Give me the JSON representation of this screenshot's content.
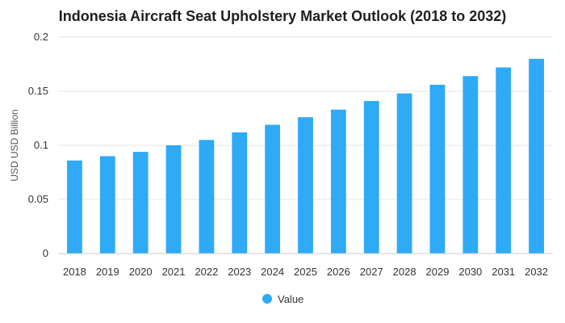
{
  "chart_data": {
    "type": "bar",
    "title": "Indonesia Aircraft Seat Upholstery Market Outlook (2018 to 2032)",
    "xlabel": "",
    "ylabel": "USD USD Billion",
    "categories": [
      "2018",
      "2019",
      "2020",
      "2021",
      "2022",
      "2023",
      "2024",
      "2025",
      "2026",
      "2027",
      "2028",
      "2029",
      "2030",
      "2031",
      "2032"
    ],
    "series": [
      {
        "name": "Value",
        "color": "#2eaaf7",
        "values": [
          0.086,
          0.09,
          0.094,
          0.1,
          0.105,
          0.112,
          0.119,
          0.126,
          0.133,
          0.141,
          0.148,
          0.156,
          0.164,
          0.172,
          0.18
        ]
      }
    ],
    "ylim": [
      0,
      0.2
    ],
    "yticks": [
      "0",
      "0.05",
      "0.1",
      "0.15",
      "0.2"
    ],
    "grid": true,
    "legend": "bottom-center"
  }
}
